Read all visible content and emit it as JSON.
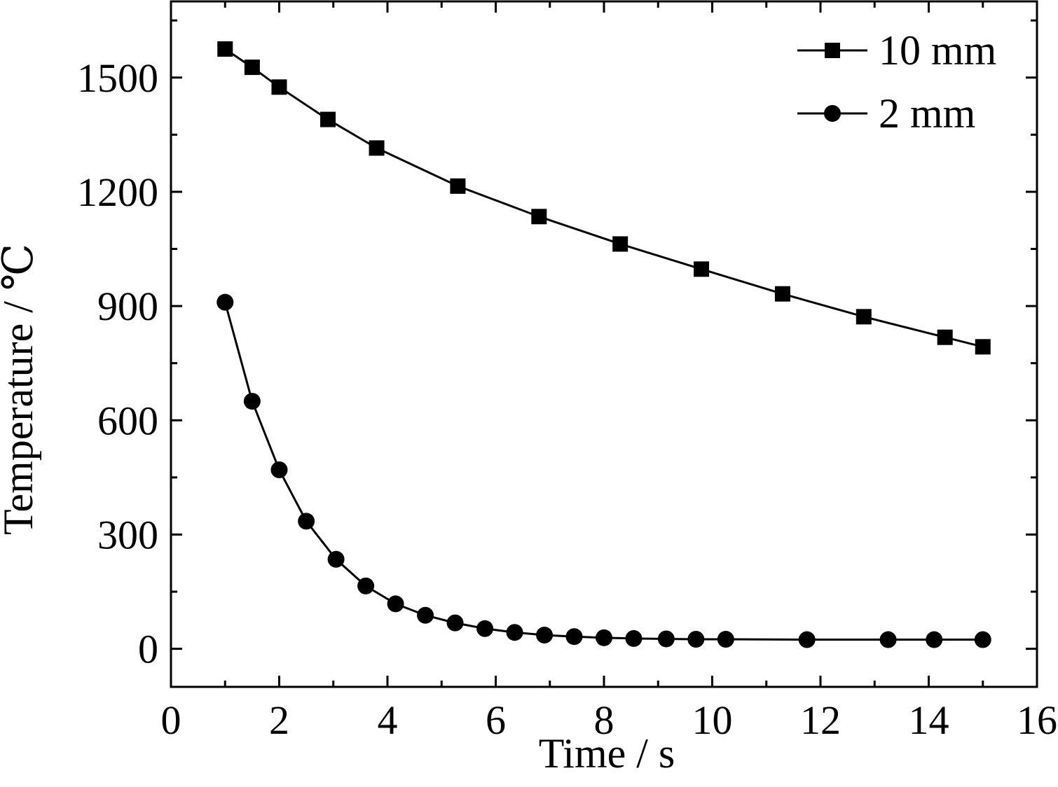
{
  "chart_data": {
    "type": "line",
    "xlabel": "Time / s",
    "ylabel": "Temperature / ℃",
    "xlim": [
      0,
      16
    ],
    "ylim": [
      -100,
      1700
    ],
    "xticks": [
      "0",
      "2",
      "4",
      "6",
      "8",
      "10",
      "12",
      "14",
      "16"
    ],
    "yticks": [
      "0",
      "300",
      "600",
      "900",
      "1200",
      "1500"
    ],
    "grid": false,
    "legend_position": "top-right",
    "series": [
      {
        "name": "10 mm",
        "marker": "square",
        "x": [
          1.0,
          1.5,
          2.0,
          2.9,
          3.8,
          5.3,
          6.8,
          8.3,
          9.8,
          11.3,
          12.8,
          14.3,
          15.0
        ],
        "y": [
          1575,
          1527,
          1475,
          1390,
          1315,
          1215,
          1135,
          1063,
          997,
          932,
          872,
          818,
          793
        ]
      },
      {
        "name": "2 mm",
        "marker": "circle",
        "x": [
          1.0,
          1.5,
          2.0,
          2.5,
          3.05,
          3.6,
          4.15,
          4.7,
          5.25,
          5.8,
          6.35,
          6.9,
          7.45,
          8.0,
          8.55,
          9.15,
          9.7,
          10.25,
          11.75,
          13.25,
          14.1,
          15.0
        ],
        "y": [
          910,
          650,
          470,
          335,
          235,
          165,
          118,
          88,
          68,
          53,
          43,
          36,
          32,
          29,
          27,
          26,
          25,
          25,
          24,
          24,
          24,
          24
        ]
      }
    ]
  }
}
